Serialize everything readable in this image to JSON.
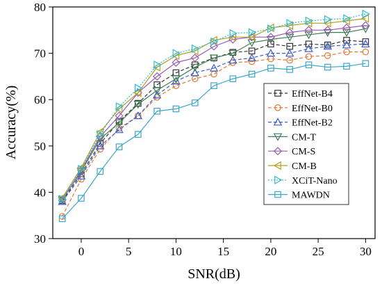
{
  "chart_data": {
    "type": "line",
    "title": "",
    "xlabel": "SNR(dB)",
    "ylabel": "Accuracy(%)",
    "x": [
      -2,
      0,
      2,
      4,
      6,
      8,
      10,
      12,
      14,
      16,
      18,
      20,
      22,
      24,
      26,
      28,
      30
    ],
    "xlim": [
      -3,
      31
    ],
    "ylim": [
      30,
      80
    ],
    "xticks": [
      0,
      5,
      10,
      15,
      20,
      25,
      30
    ],
    "yticks": [
      30,
      40,
      50,
      60,
      70,
      80
    ],
    "grid": false,
    "legend_position": "right",
    "series": [
      {
        "name": "EffNet-B4",
        "color": "#333333",
        "dash": "5,3",
        "marker": "square",
        "values": [
          38.2,
          44.0,
          50.5,
          55.3,
          59.2,
          63.2,
          65.8,
          67.5,
          69.0,
          70.2,
          70.5,
          72.0,
          71.5,
          72.0,
          71.8,
          72.8,
          72.5
        ]
      },
      {
        "name": "EffNet-B0",
        "color": "#e0793a",
        "dash": "5,3",
        "marker": "circle",
        "values": [
          34.8,
          42.8,
          49.3,
          53.8,
          56.5,
          60.5,
          63.0,
          64.5,
          65.5,
          68.0,
          68.2,
          68.8,
          68.5,
          69.3,
          69.5,
          70.3,
          70.3
        ]
      },
      {
        "name": "EffNet-B2",
        "color": "#3a5fcd",
        "dash": "5,3",
        "marker": "triangle-up",
        "values": [
          38.0,
          43.5,
          50.0,
          53.5,
          56.5,
          61.0,
          64.0,
          65.8,
          66.8,
          68.5,
          69.0,
          70.0,
          70.0,
          71.0,
          71.5,
          71.8,
          72.0
        ]
      },
      {
        "name": "CM-T",
        "color": "#3f7f55",
        "dash": "",
        "marker": "triangle-down",
        "values": [
          38.5,
          44.5,
          51.5,
          55.0,
          59.0,
          62.0,
          64.5,
          67.0,
          69.0,
          70.0,
          72.3,
          73.0,
          73.5,
          74.0,
          74.5,
          74.5,
          75.3
        ]
      },
      {
        "name": "CM-S",
        "color": "#9b59b6",
        "dash": "",
        "marker": "diamond",
        "values": [
          38.3,
          44.8,
          52.0,
          56.5,
          61.5,
          65.0,
          68.0,
          69.0,
          71.5,
          73.0,
          73.5,
          73.5,
          74.5,
          75.0,
          75.0,
          75.5,
          76.0
        ]
      },
      {
        "name": "CM-B",
        "color": "#b5a01f",
        "dash": "",
        "marker": "triangle-left",
        "values": [
          38.8,
          45.3,
          53.0,
          58.0,
          61.5,
          67.0,
          69.5,
          70.5,
          72.8,
          73.5,
          73.5,
          75.5,
          76.0,
          76.5,
          76.5,
          77.0,
          77.5
        ]
      },
      {
        "name": "XCiT-Nano",
        "color": "#2bbcd4",
        "dash": "2,2",
        "marker": "triangle-right",
        "values": [
          38.5,
          45.0,
          52.5,
          58.5,
          62.5,
          67.5,
          70.0,
          71.0,
          72.5,
          74.3,
          74.5,
          75.3,
          76.5,
          77.0,
          77.3,
          77.5,
          78.5
        ]
      },
      {
        "name": "MAWDN",
        "color": "#3aa6c9",
        "dash": "",
        "marker": "square",
        "values": [
          34.3,
          38.7,
          44.5,
          49.8,
          52.5,
          57.5,
          58.0,
          59.3,
          63.0,
          64.5,
          65.5,
          66.8,
          66.5,
          67.5,
          67.0,
          67.2,
          67.8
        ]
      }
    ]
  }
}
